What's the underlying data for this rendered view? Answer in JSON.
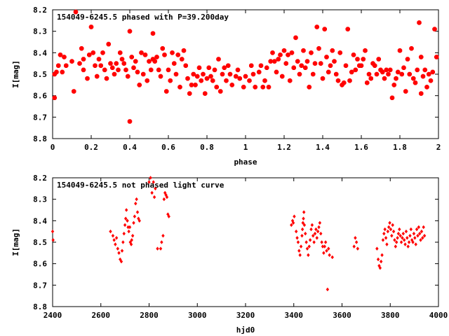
{
  "chart_data": [
    {
      "type": "scatter",
      "title": "154049-6245.5 phased with P=39.200day",
      "xlabel": "phase",
      "ylabel": "I[mag]",
      "xlim": [
        0,
        2
      ],
      "ylim": [
        8.8,
        8.2
      ],
      "xticks": [
        0,
        0.2,
        0.4,
        0.6,
        0.8,
        1,
        1.2,
        1.4,
        1.6,
        1.8,
        2
      ],
      "xtick_labels": [
        "0",
        "0.2",
        "0.4",
        "0.6",
        "0.8",
        "1",
        "1.2",
        "1.4",
        "1.6",
        "1.8",
        "2"
      ],
      "yticks": [
        8.2,
        8.3,
        8.4,
        8.5,
        8.6,
        8.7,
        8.8
      ],
      "ytick_labels": [
        "8.2",
        "8.3",
        "8.4",
        "8.5",
        "8.6",
        "8.7",
        "8.8"
      ],
      "grid": false,
      "marker_color": "#ff0000",
      "points": [
        [
          0.01,
          8.61
        ],
        [
          0.01,
          8.5
        ],
        [
          0.02,
          8.49
        ],
        [
          0.03,
          8.46
        ],
        [
          0.04,
          8.41
        ],
        [
          0.05,
          8.49
        ],
        [
          0.06,
          8.42
        ],
        [
          0.07,
          8.46
        ],
        [
          0.1,
          8.44
        ],
        [
          0.11,
          8.58
        ],
        [
          0.12,
          8.21
        ],
        [
          0.14,
          8.45
        ],
        [
          0.15,
          8.38
        ],
        [
          0.16,
          8.43
        ],
        [
          0.16,
          8.48
        ],
        [
          0.18,
          8.52
        ],
        [
          0.19,
          8.41
        ],
        [
          0.2,
          8.28
        ],
        [
          0.21,
          8.4
        ],
        [
          0.22,
          8.46
        ],
        [
          0.23,
          8.51
        ],
        [
          0.24,
          8.43
        ],
        [
          0.25,
          8.46
        ],
        [
          0.26,
          8.4
        ],
        [
          0.27,
          8.48
        ],
        [
          0.28,
          8.52
        ],
        [
          0.29,
          8.36
        ],
        [
          0.3,
          8.45
        ],
        [
          0.31,
          8.47
        ],
        [
          0.32,
          8.5
        ],
        [
          0.33,
          8.45
        ],
        [
          0.34,
          8.48
        ],
        [
          0.35,
          8.4
        ],
        [
          0.36,
          8.43
        ],
        [
          0.37,
          8.45
        ],
        [
          0.38,
          8.48
        ],
        [
          0.39,
          8.51
        ],
        [
          0.4,
          8.3
        ],
        [
          0.4,
          8.72
        ],
        [
          0.41,
          8.42
        ],
        [
          0.42,
          8.47
        ],
        [
          0.43,
          8.44
        ],
        [
          0.44,
          8.49
        ],
        [
          0.45,
          8.55
        ],
        [
          0.46,
          8.4
        ],
        [
          0.47,
          8.5
        ],
        [
          0.48,
          8.41
        ],
        [
          0.49,
          8.53
        ],
        [
          0.5,
          8.44
        ],
        [
          0.51,
          8.48
        ],
        [
          0.52,
          8.43
        ],
        [
          0.52,
          8.31
        ],
        [
          0.53,
          8.44
        ],
        [
          0.54,
          8.42
        ],
        [
          0.55,
          8.48
        ],
        [
          0.56,
          8.51
        ],
        [
          0.57,
          8.38
        ],
        [
          0.58,
          8.41
        ],
        [
          0.59,
          8.58
        ],
        [
          0.6,
          8.48
        ],
        [
          0.61,
          8.53
        ],
        [
          0.62,
          8.4
        ],
        [
          0.63,
          8.45
        ],
        [
          0.64,
          8.5
        ],
        [
          0.65,
          8.41
        ],
        [
          0.66,
          8.56
        ],
        [
          0.67,
          8.43
        ],
        [
          0.68,
          8.39
        ],
        [
          0.69,
          8.46
        ],
        [
          0.7,
          8.52
        ],
        [
          0.71,
          8.59
        ],
        [
          0.72,
          8.55
        ],
        [
          0.73,
          8.5
        ],
        [
          0.74,
          8.55
        ],
        [
          0.75,
          8.51
        ],
        [
          0.76,
          8.47
        ],
        [
          0.77,
          8.53
        ],
        [
          0.78,
          8.5
        ],
        [
          0.79,
          8.59
        ],
        [
          0.8,
          8.52
        ],
        [
          0.81,
          8.47
        ],
        [
          0.82,
          8.51
        ],
        [
          0.83,
          8.53
        ],
        [
          0.84,
          8.48
        ],
        [
          0.85,
          8.56
        ],
        [
          0.86,
          8.43
        ],
        [
          0.87,
          8.58
        ],
        [
          0.88,
          8.5
        ],
        [
          0.89,
          8.47
        ],
        [
          0.9,
          8.53
        ],
        [
          0.91,
          8.46
        ],
        [
          0.92,
          8.5
        ],
        [
          0.93,
          8.55
        ],
        [
          0.95,
          8.51
        ],
        [
          0.96,
          8.48
        ],
        [
          0.97,
          8.52
        ],
        [
          0.99,
          8.56
        ],
        [
          1.0,
          8.51
        ],
        [
          1.02,
          8.53
        ],
        [
          1.03,
          8.46
        ],
        [
          1.04,
          8.5
        ],
        [
          1.05,
          8.56
        ],
        [
          1.07,
          8.49
        ],
        [
          1.08,
          8.46
        ],
        [
          1.09,
          8.56
        ],
        [
          1.1,
          8.53
        ],
        [
          1.11,
          8.47
        ],
        [
          1.12,
          8.56
        ],
        [
          1.13,
          8.44
        ],
        [
          1.14,
          8.4
        ],
        [
          1.15,
          8.44
        ],
        [
          1.16,
          8.49
        ],
        [
          1.17,
          8.43
        ],
        [
          1.18,
          8.41
        ],
        [
          1.19,
          8.51
        ],
        [
          1.2,
          8.39
        ],
        [
          1.21,
          8.45
        ],
        [
          1.22,
          8.41
        ],
        [
          1.23,
          8.53
        ],
        [
          1.24,
          8.4
        ],
        [
          1.25,
          8.47
        ],
        [
          1.26,
          8.33
        ],
        [
          1.27,
          8.44
        ],
        [
          1.28,
          8.5
        ],
        [
          1.29,
          8.46
        ],
        [
          1.3,
          8.39
        ],
        [
          1.31,
          8.47
        ],
        [
          1.32,
          8.44
        ],
        [
          1.33,
          8.56
        ],
        [
          1.34,
          8.4
        ],
        [
          1.35,
          8.5
        ],
        [
          1.36,
          8.45
        ],
        [
          1.37,
          8.28
        ],
        [
          1.38,
          8.38
        ],
        [
          1.39,
          8.45
        ],
        [
          1.4,
          8.52
        ],
        [
          1.41,
          8.29
        ],
        [
          1.42,
          8.42
        ],
        [
          1.43,
          8.49
        ],
        [
          1.44,
          8.46
        ],
        [
          1.45,
          8.39
        ],
        [
          1.46,
          8.44
        ],
        [
          1.47,
          8.5
        ],
        [
          1.48,
          8.53
        ],
        [
          1.49,
          8.4
        ],
        [
          1.5,
          8.55
        ],
        [
          1.51,
          8.54
        ],
        [
          1.52,
          8.46
        ],
        [
          1.53,
          8.29
        ],
        [
          1.54,
          8.53
        ],
        [
          1.55,
          8.49
        ],
        [
          1.56,
          8.41
        ],
        [
          1.57,
          8.48
        ],
        [
          1.58,
          8.43
        ],
        [
          1.59,
          8.46
        ],
        [
          1.6,
          8.46
        ],
        [
          1.61,
          8.43
        ],
        [
          1.62,
          8.39
        ],
        [
          1.63,
          8.54
        ],
        [
          1.64,
          8.5
        ],
        [
          1.65,
          8.52
        ],
        [
          1.66,
          8.45
        ],
        [
          1.67,
          8.46
        ],
        [
          1.68,
          8.5
        ],
        [
          1.69,
          8.43
        ],
        [
          1.7,
          8.48
        ],
        [
          1.71,
          8.49
        ],
        [
          1.72,
          8.52
        ],
        [
          1.73,
          8.48
        ],
        [
          1.74,
          8.5
        ],
        [
          1.75,
          8.48
        ],
        [
          1.76,
          8.61
        ],
        [
          1.77,
          8.55
        ],
        [
          1.78,
          8.52
        ],
        [
          1.79,
          8.49
        ],
        [
          1.8,
          8.39
        ],
        [
          1.81,
          8.5
        ],
        [
          1.82,
          8.47
        ],
        [
          1.83,
          8.58
        ],
        [
          1.84,
          8.43
        ],
        [
          1.85,
          8.5
        ],
        [
          1.86,
          8.38
        ],
        [
          1.87,
          8.52
        ],
        [
          1.88,
          8.54
        ],
        [
          1.89,
          8.48
        ],
        [
          1.9,
          8.26
        ],
        [
          1.91,
          8.42
        ],
        [
          1.91,
          8.59
        ],
        [
          1.92,
          8.51
        ],
        [
          1.93,
          8.48
        ],
        [
          1.94,
          8.56
        ],
        [
          1.95,
          8.5
        ],
        [
          1.96,
          8.53
        ],
        [
          1.97,
          8.49
        ],
        [
          1.98,
          8.29
        ],
        [
          1.99,
          8.42
        ]
      ]
    },
    {
      "type": "scatter",
      "title": "154049-6245.5 not phased light curve",
      "xlabel": "hjd0",
      "ylabel": "I[mag]",
      "xlim": [
        2400,
        4000
      ],
      "ylim": [
        8.8,
        8.2
      ],
      "xticks": [
        2400,
        2600,
        2800,
        3000,
        3200,
        3400,
        3600,
        3800,
        4000
      ],
      "xtick_labels": [
        "2400",
        "2600",
        "2800",
        "3000",
        "3200",
        "3400",
        "3600",
        "3800",
        "4000"
      ],
      "yticks": [
        8.2,
        8.3,
        8.4,
        8.5,
        8.6,
        8.7,
        8.8
      ],
      "ytick_labels": [
        "8.2",
        "8.3",
        "8.4",
        "8.5",
        "8.6",
        "8.7",
        "8.8"
      ],
      "grid": false,
      "marker_color": "#ff0000",
      "points": [
        [
          2400,
          8.45
        ],
        [
          2402,
          8.49
        ],
        [
          2640,
          8.45
        ],
        [
          2650,
          8.47
        ],
        [
          2655,
          8.49
        ],
        [
          2660,
          8.51
        ],
        [
          2665,
          8.48
        ],
        [
          2670,
          8.53
        ],
        [
          2675,
          8.55
        ],
        [
          2680,
          8.58
        ],
        [
          2685,
          8.59
        ],
        [
          2688,
          8.54
        ],
        [
          2692,
          8.5
        ],
        [
          2696,
          8.46
        ],
        [
          2700,
          8.42
        ],
        [
          2703,
          8.39
        ],
        [
          2706,
          8.35
        ],
        [
          2710,
          8.4
        ],
        [
          2713,
          8.43
        ],
        [
          2716,
          8.45
        ],
        [
          2720,
          8.43
        ],
        [
          2722,
          8.5
        ],
        [
          2726,
          8.51
        ],
        [
          2728,
          8.49
        ],
        [
          2732,
          8.47
        ],
        [
          2736,
          8.41
        ],
        [
          2740,
          8.38
        ],
        [
          2744,
          8.32
        ],
        [
          2748,
          8.3
        ],
        [
          2752,
          8.36
        ],
        [
          2756,
          8.39
        ],
        [
          2760,
          8.4
        ],
        [
          2800,
          8.22
        ],
        [
          2806,
          8.2
        ],
        [
          2812,
          8.27
        ],
        [
          2818,
          8.22
        ],
        [
          2822,
          8.29
        ],
        [
          2826,
          8.25
        ],
        [
          2835,
          8.53
        ],
        [
          2848,
          8.53
        ],
        [
          2852,
          8.5
        ],
        [
          2858,
          8.47
        ],
        [
          2862,
          8.3
        ],
        [
          2866,
          8.27
        ],
        [
          2870,
          8.28
        ],
        [
          2874,
          8.29
        ],
        [
          2878,
          8.37
        ],
        [
          2882,
          8.38
        ],
        [
          3390,
          8.42
        ],
        [
          3395,
          8.4
        ],
        [
          3398,
          8.41
        ],
        [
          3402,
          8.38
        ],
        [
          3410,
          8.45
        ],
        [
          3414,
          8.48
        ],
        [
          3418,
          8.5
        ],
        [
          3422,
          8.54
        ],
        [
          3426,
          8.56
        ],
        [
          3430,
          8.52
        ],
        [
          3434,
          8.47
        ],
        [
          3436,
          8.44
        ],
        [
          3438,
          8.41
        ],
        [
          3440,
          8.39
        ],
        [
          3442,
          8.36
        ],
        [
          3444,
          8.42
        ],
        [
          3448,
          8.46
        ],
        [
          3452,
          8.5
        ],
        [
          3456,
          8.53
        ],
        [
          3460,
          8.56
        ],
        [
          3464,
          8.52
        ],
        [
          3468,
          8.49
        ],
        [
          3472,
          8.44
        ],
        [
          3476,
          8.42
        ],
        [
          3480,
          8.47
        ],
        [
          3484,
          8.5
        ],
        [
          3488,
          8.46
        ],
        [
          3492,
          8.44
        ],
        [
          3496,
          8.48
        ],
        [
          3500,
          8.45
        ],
        [
          3504,
          8.43
        ],
        [
          3508,
          8.41
        ],
        [
          3512,
          8.46
        ],
        [
          3516,
          8.5
        ],
        [
          3520,
          8.52
        ],
        [
          3524,
          8.55
        ],
        [
          3528,
          8.52
        ],
        [
          3532,
          8.5
        ],
        [
          3536,
          8.54
        ],
        [
          3540,
          8.72
        ],
        [
          3544,
          8.53
        ],
        [
          3548,
          8.56
        ],
        [
          3560,
          8.57
        ],
        [
          3650,
          8.52
        ],
        [
          3655,
          8.48
        ],
        [
          3660,
          8.5
        ],
        [
          3665,
          8.53
        ],
        [
          3745,
          8.53
        ],
        [
          3750,
          8.58
        ],
        [
          3754,
          8.61
        ],
        [
          3758,
          8.62
        ],
        [
          3762,
          8.59
        ],
        [
          3766,
          8.56
        ],
        [
          3770,
          8.49
        ],
        [
          3774,
          8.46
        ],
        [
          3778,
          8.44
        ],
        [
          3782,
          8.48
        ],
        [
          3786,
          8.51
        ],
        [
          3790,
          8.45
        ],
        [
          3794,
          8.43
        ],
        [
          3798,
          8.41
        ],
        [
          3802,
          8.44
        ],
        [
          3806,
          8.47
        ],
        [
          3810,
          8.42
        ],
        [
          3814,
          8.45
        ],
        [
          3818,
          8.49
        ],
        [
          3822,
          8.52
        ],
        [
          3826,
          8.5
        ],
        [
          3830,
          8.48
        ],
        [
          3834,
          8.46
        ],
        [
          3838,
          8.44
        ],
        [
          3842,
          8.47
        ],
        [
          3846,
          8.5
        ],
        [
          3850,
          8.48
        ],
        [
          3854,
          8.46
        ],
        [
          3858,
          8.49
        ],
        [
          3862,
          8.51
        ],
        [
          3866,
          8.45
        ],
        [
          3870,
          8.48
        ],
        [
          3874,
          8.52
        ],
        [
          3878,
          8.5
        ],
        [
          3882,
          8.47
        ],
        [
          3886,
          8.44
        ],
        [
          3890,
          8.49
        ],
        [
          3894,
          8.5
        ],
        [
          3898,
          8.46
        ],
        [
          3902,
          8.48
        ],
        [
          3906,
          8.51
        ],
        [
          3910,
          8.44
        ],
        [
          3914,
          8.47
        ],
        [
          3918,
          8.43
        ],
        [
          3922,
          8.46
        ],
        [
          3926,
          8.49
        ],
        [
          3930,
          8.45
        ],
        [
          3934,
          8.48
        ],
        [
          3938,
          8.43
        ],
        [
          3942,
          8.47
        ]
      ]
    }
  ]
}
